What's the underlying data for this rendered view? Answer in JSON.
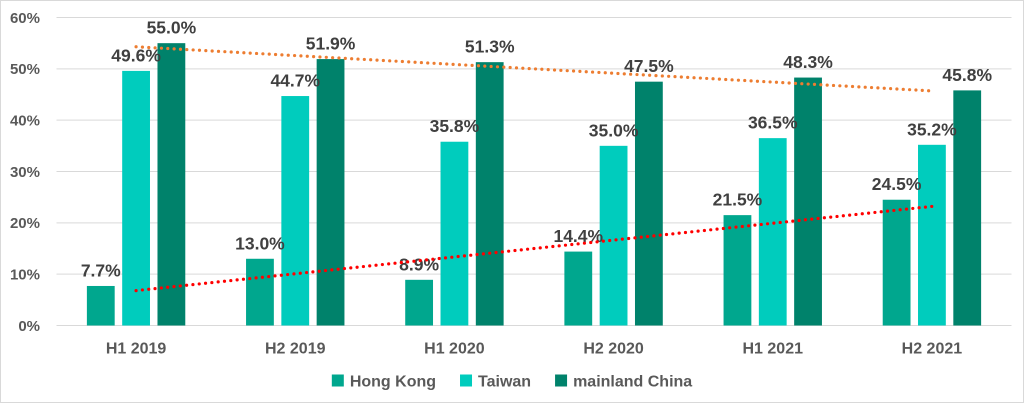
{
  "chart_data": {
    "type": "bar",
    "title": "",
    "categories": [
      "H1 2019",
      "H2 2019",
      "H1 2020",
      "H2 2020",
      "H1 2021",
      "H2 2021"
    ],
    "series": [
      {
        "name": "Hong Kong",
        "color": "#00a78e",
        "values": [
          7.7,
          13.0,
          8.9,
          14.4,
          21.5,
          24.5
        ],
        "labels": [
          "7.7%",
          "13.0%",
          "8.9%",
          "14.4%",
          "21.5%",
          "24.5%"
        ]
      },
      {
        "name": "Taiwan",
        "color": "#00ccbd",
        "values": [
          49.6,
          44.7,
          35.8,
          35.0,
          36.5,
          35.2
        ],
        "labels": [
          "49.6%",
          "44.7%",
          "35.8%",
          "35.0%",
          "36.5%",
          "35.2%"
        ]
      },
      {
        "name": "mainland China",
        "color": "#00826b",
        "values": [
          55.0,
          51.9,
          51.3,
          47.5,
          48.3,
          45.8
        ],
        "labels": [
          "55.0%",
          "51.9%",
          "51.3%",
          "47.5%",
          "48.3%",
          "45.8%"
        ]
      }
    ],
    "trendlines": [
      {
        "series": "mainland China",
        "color": "#ed7d31",
        "style": "dotted",
        "start_value": 54.3,
        "end_value": 45.7
      },
      {
        "series": "Hong Kong",
        "color": "#ff0000",
        "style": "dotted",
        "start_value": 6.8,
        "end_value": 23.2
      }
    ],
    "xlabel": "",
    "ylabel": "",
    "ylim": [
      0,
      60
    ],
    "y_tick_step": 10,
    "y_tick_labels": [
      "0%",
      "10%",
      "20%",
      "30%",
      "40%",
      "50%",
      "60%"
    ],
    "grid": true,
    "legend_position": "bottom",
    "colors": {
      "axis_text": "#595959",
      "data_label_text": "#404040",
      "gridline": "#d9d9d9",
      "axis_line": "#d9d9d9",
      "frame_border": "#d9d9d9",
      "background": "#ffffff"
    }
  }
}
